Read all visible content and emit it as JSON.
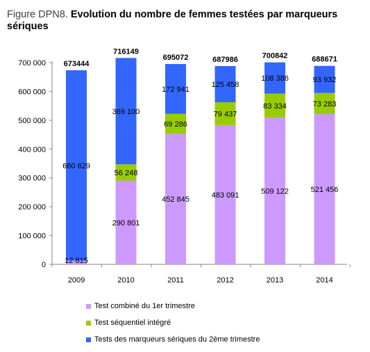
{
  "title": {
    "prefix": "Figure DPN8.",
    "text": "Evolution du nombre de femmes testées par marqueurs sériques"
  },
  "chart_data": {
    "type": "bar",
    "stacked": true,
    "categories": [
      "2009",
      "2010",
      "2011",
      "2012",
      "2013",
      "2014"
    ],
    "series": [
      {
        "name": "Test combiné du 1er trimestre",
        "color": "#cc99ff",
        "values": [
          12815,
          290801,
          452845,
          483091,
          509122,
          521456
        ],
        "labels": [
          "12 815",
          "290 801",
          "452 845",
          "483 091",
          "509 122",
          "521 456"
        ]
      },
      {
        "name": "Test séquentiel intégré",
        "color": "#99cc00",
        "values": [
          0,
          56248,
          69286,
          79437,
          83334,
          73283
        ],
        "labels": [
          "",
          "56 248",
          "69 286",
          "79 437",
          "83 334",
          "73 283"
        ]
      },
      {
        "name": "Tests des marqueurs sériques du 2ème trimestre",
        "color": "#3366ff",
        "values": [
          660629,
          369100,
          172941,
          125458,
          108386,
          93932
        ],
        "labels": [
          "660 629",
          "369 100",
          "172 941",
          "125 458",
          "108 386",
          "93 932"
        ]
      }
    ],
    "totals": [
      673444,
      716149,
      695072,
      687986,
      700842,
      688671
    ],
    "total_labels": [
      "673444",
      "716149",
      "695072",
      "687986",
      "700842",
      "688671"
    ],
    "ylim": [
      0,
      700000
    ],
    "yticks": [
      0,
      100000,
      200000,
      300000,
      400000,
      500000,
      600000,
      700000
    ],
    "ytick_labels": [
      "0",
      "100 000",
      "200 000",
      "300 000",
      "400 000",
      "500 000",
      "600 000",
      "700 000"
    ],
    "grid": false,
    "legend_position": "bottom"
  }
}
